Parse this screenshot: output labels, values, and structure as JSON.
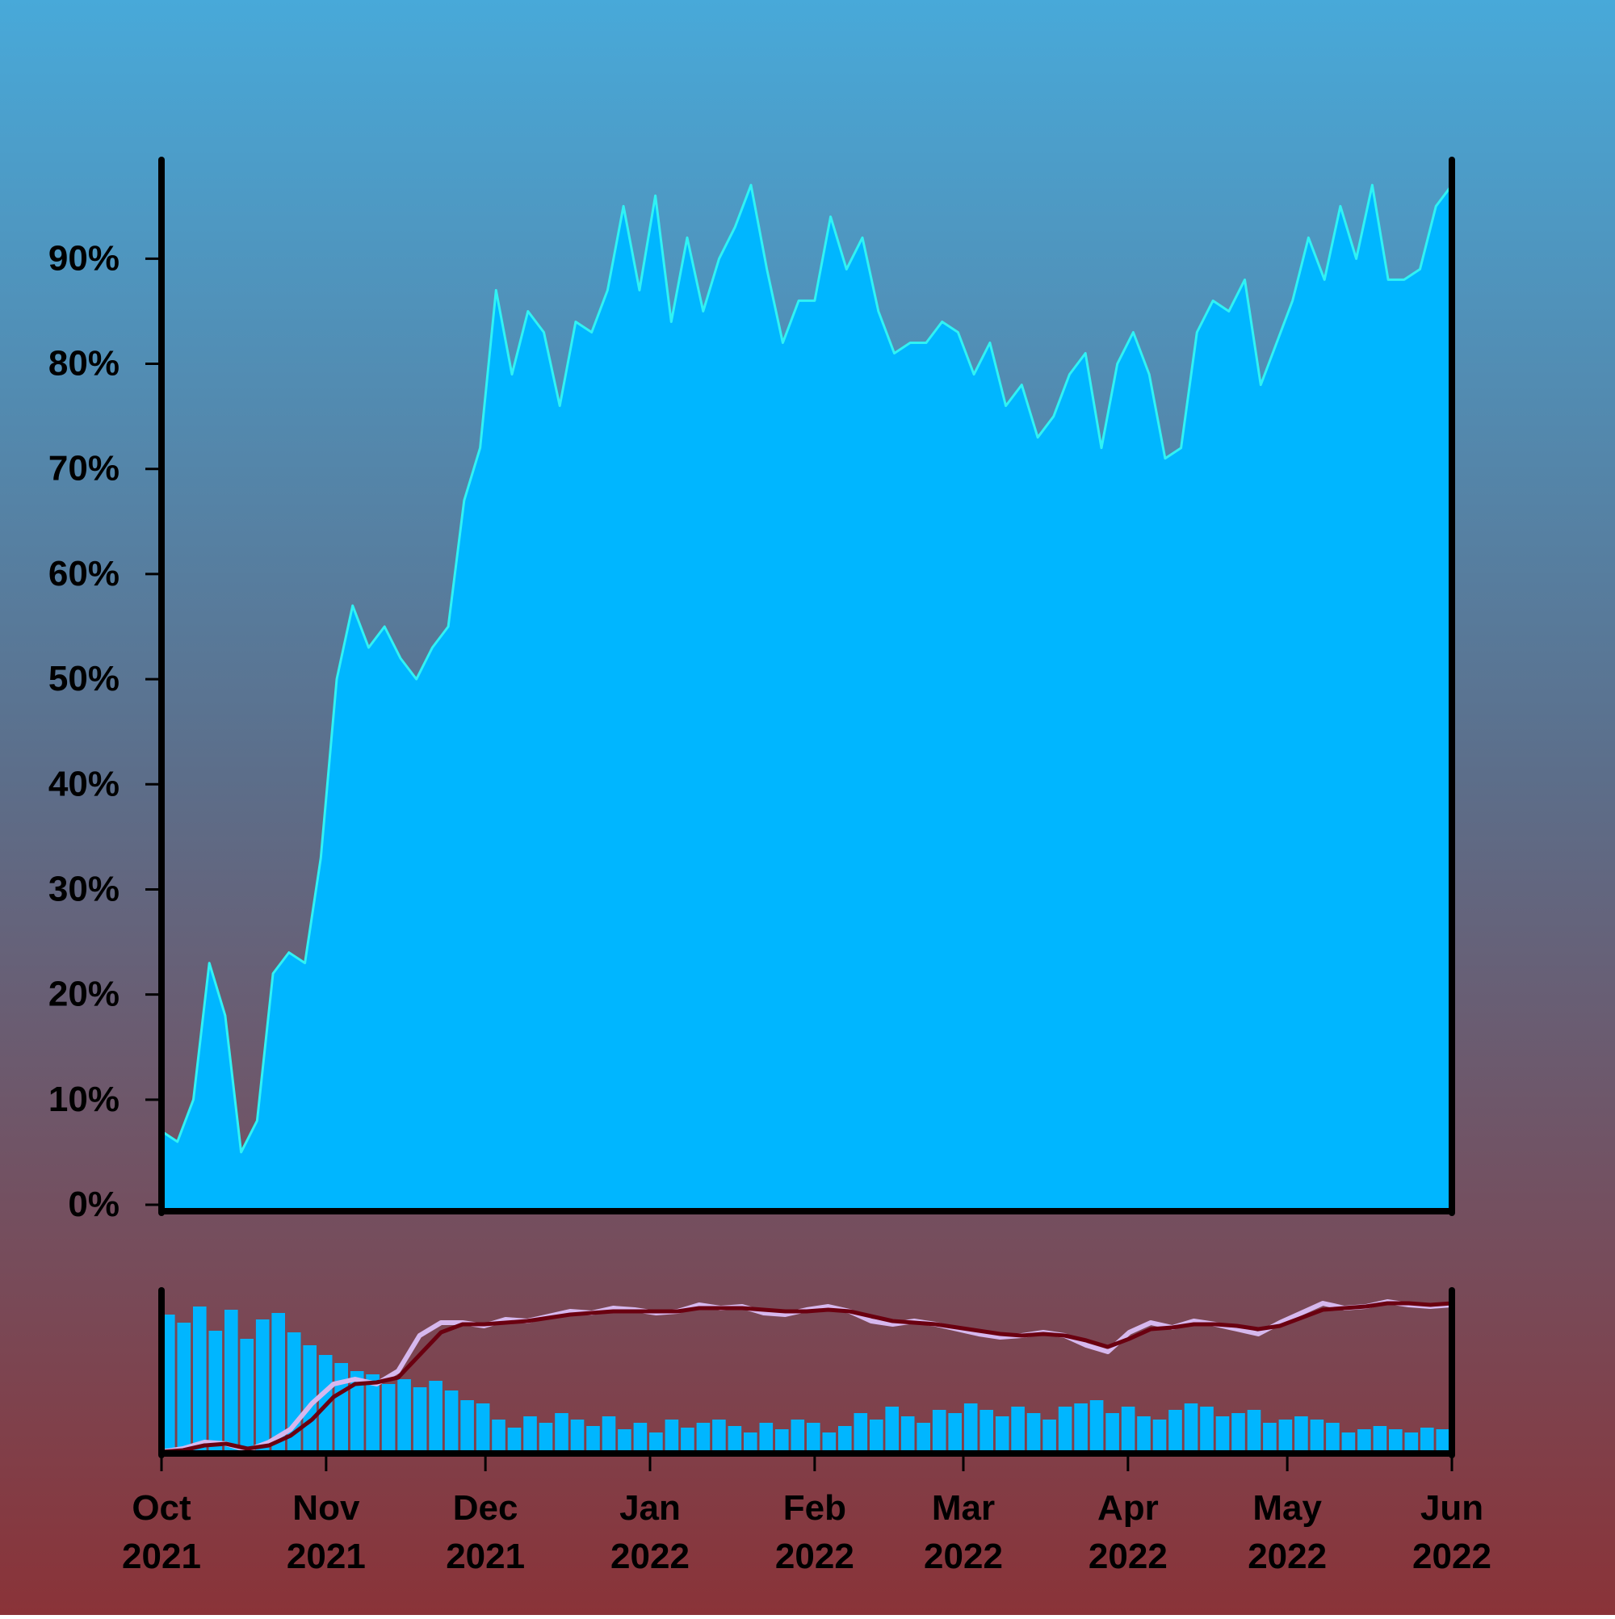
{
  "colors": {
    "area_fill": "#00b6ff",
    "main_line": "#30f2f4",
    "bars": "#00b6ff",
    "fast_average": "#d6b8ee",
    "slow_average": "#6a0010",
    "axis": "#000000"
  },
  "chart_data": [
    {
      "type": "area",
      "title": "",
      "xlabel": "",
      "ylabel": "",
      "ylim": [
        -0.0046,
        0.994
      ],
      "xlim": [
        "2021-10-01",
        "2022-06-01"
      ],
      "y_ticks": [
        "0%",
        "10%",
        "20%",
        "30%",
        "40%",
        "50%",
        "60%",
        "70%",
        "80%",
        "90%"
      ],
      "y_tick_values": [
        0,
        0.1,
        0.2,
        0.3,
        0.4,
        0.5,
        0.6,
        0.7,
        0.8,
        0.9
      ],
      "grid": false,
      "series": [
        {
          "x": [
            "2021-10-01",
            "2021-10-04",
            "2021-10-07",
            "2021-10-10",
            "2021-10-13",
            "2021-10-16",
            "2021-10-19",
            "2021-10-22",
            "2021-10-25",
            "2021-10-28",
            "2021-10-31",
            "2021-11-03",
            "2021-11-06",
            "2021-11-09",
            "2021-11-12",
            "2021-11-15",
            "2021-11-18",
            "2021-11-21",
            "2021-11-24",
            "2021-11-27",
            "2021-11-30",
            "2021-12-03",
            "2021-12-06",
            "2021-12-09",
            "2021-12-12",
            "2021-12-15",
            "2021-12-18",
            "2021-12-21",
            "2021-12-24",
            "2021-12-27",
            "2021-12-30",
            "2022-01-02",
            "2022-01-05",
            "2022-01-08",
            "2022-01-11",
            "2022-01-14",
            "2022-01-17",
            "2022-01-20",
            "2022-01-23",
            "2022-01-26",
            "2022-01-29",
            "2022-02-01",
            "2022-02-04",
            "2022-02-07",
            "2022-02-10",
            "2022-02-13",
            "2022-02-16",
            "2022-02-19",
            "2022-02-22",
            "2022-02-25",
            "2022-02-28",
            "2022-03-03",
            "2022-03-06",
            "2022-03-09",
            "2022-03-12",
            "2022-03-15",
            "2022-03-18",
            "2022-03-21",
            "2022-03-24",
            "2022-03-27",
            "2022-03-30",
            "2022-04-02",
            "2022-04-05",
            "2022-04-08",
            "2022-04-11",
            "2022-04-14",
            "2022-04-17",
            "2022-04-20",
            "2022-04-23",
            "2022-04-26",
            "2022-04-29",
            "2022-05-02",
            "2022-05-05",
            "2022-05-08",
            "2022-05-11",
            "2022-05-14",
            "2022-05-17",
            "2022-05-20",
            "2022-05-23",
            "2022-05-26",
            "2022-05-29",
            "2022-06-01"
          ],
          "y": [
            0.07,
            0.06,
            0.1,
            0.23,
            0.18,
            0.05,
            0.08,
            0.22,
            0.24,
            0.23,
            0.33,
            0.5,
            0.57,
            0.53,
            0.55,
            0.52,
            0.5,
            0.53,
            0.55,
            0.67,
            0.72,
            0.87,
            0.79,
            0.85,
            0.83,
            0.76,
            0.84,
            0.83,
            0.87,
            0.95,
            0.87,
            0.96,
            0.84,
            0.92,
            0.85,
            0.9,
            0.93,
            0.97,
            0.89,
            0.82,
            0.86,
            0.86,
            0.94,
            0.89,
            0.92,
            0.85,
            0.81,
            0.82,
            0.82,
            0.84,
            0.83,
            0.79,
            0.82,
            0.76,
            0.78,
            0.73,
            0.75,
            0.79,
            0.81,
            0.72,
            0.8,
            0.83,
            0.79,
            0.71,
            0.72,
            0.83,
            0.86,
            0.85,
            0.88,
            0.78,
            0.82,
            0.86,
            0.92,
            0.88,
            0.95,
            0.9,
            0.97,
            0.88,
            0.88,
            0.89,
            0.95,
            0.97
          ]
        }
      ]
    },
    {
      "type": "bar",
      "title": "",
      "xlabel": "",
      "ylabel": "",
      "x_ticks": [
        "Oct\n2021",
        "Nov\n2021",
        "Dec\n2021",
        "Jan\n2022",
        "Feb\n2022",
        "Mar\n2022",
        "Apr\n2022",
        "May\n2022",
        "Jun\n2022"
      ],
      "x_tick_dates": [
        "2021-10-01",
        "2021-11-01",
        "2021-12-01",
        "2022-01-01",
        "2022-02-01",
        "2022-03-01",
        "2022-04-01",
        "2022-05-01",
        "2022-06-01"
      ],
      "series": [
        {
          "name": "",
          "type": "bar",
          "values": [
            0.85,
            0.8,
            0.9,
            0.75,
            0.88,
            0.7,
            0.82,
            0.86,
            0.74,
            0.66,
            0.6,
            0.55,
            0.5,
            0.48,
            0.42,
            0.45,
            0.4,
            0.44,
            0.38,
            0.32,
            0.3,
            0.2,
            0.15,
            0.22,
            0.18,
            0.24,
            0.2,
            0.16,
            0.22,
            0.14,
            0.18,
            0.12,
            0.2,
            0.15,
            0.18,
            0.2,
            0.16,
            0.12,
            0.18,
            0.14,
            0.2,
            0.18,
            0.12,
            0.16,
            0.24,
            0.2,
            0.28,
            0.22,
            0.18,
            0.26,
            0.24,
            0.3,
            0.26,
            0.22,
            0.28,
            0.24,
            0.2,
            0.28,
            0.3,
            0.32,
            0.24,
            0.28,
            0.22,
            0.2,
            0.26,
            0.3,
            0.28,
            0.22,
            0.24,
            0.26,
            0.18,
            0.2,
            0.22,
            0.2,
            0.18,
            0.12,
            0.14,
            0.16,
            0.14,
            0.12,
            0.15,
            0.14
          ]
        },
        {
          "name": "",
          "type": "line",
          "values": [
            0.0,
            0.02,
            0.06,
            0.05,
            0.01,
            0.06,
            0.14,
            0.3,
            0.42,
            0.45,
            0.42,
            0.5,
            0.72,
            0.8,
            0.8,
            0.78,
            0.82,
            0.81,
            0.84,
            0.87,
            0.86,
            0.89,
            0.88,
            0.86,
            0.87,
            0.91,
            0.89,
            0.9,
            0.86,
            0.85,
            0.88,
            0.9,
            0.87,
            0.81,
            0.79,
            0.81,
            0.79,
            0.76,
            0.73,
            0.71,
            0.72,
            0.74,
            0.72,
            0.66,
            0.62,
            0.74,
            0.8,
            0.77,
            0.81,
            0.79,
            0.76,
            0.73,
            0.8,
            0.86,
            0.92,
            0.89,
            0.9,
            0.93,
            0.91,
            0.9,
            0.91
          ]
        },
        {
          "name": "",
          "type": "line",
          "values": [
            0.0,
            0.01,
            0.04,
            0.05,
            0.02,
            0.04,
            0.1,
            0.2,
            0.34,
            0.42,
            0.43,
            0.46,
            0.6,
            0.74,
            0.79,
            0.79,
            0.8,
            0.81,
            0.83,
            0.85,
            0.86,
            0.87,
            0.87,
            0.87,
            0.87,
            0.89,
            0.89,
            0.89,
            0.88,
            0.87,
            0.87,
            0.88,
            0.87,
            0.84,
            0.81,
            0.8,
            0.79,
            0.77,
            0.75,
            0.73,
            0.72,
            0.73,
            0.72,
            0.69,
            0.65,
            0.7,
            0.76,
            0.77,
            0.79,
            0.79,
            0.78,
            0.76,
            0.78,
            0.83,
            0.88,
            0.89,
            0.9,
            0.92,
            0.92,
            0.91,
            0.92
          ]
        }
      ]
    }
  ]
}
